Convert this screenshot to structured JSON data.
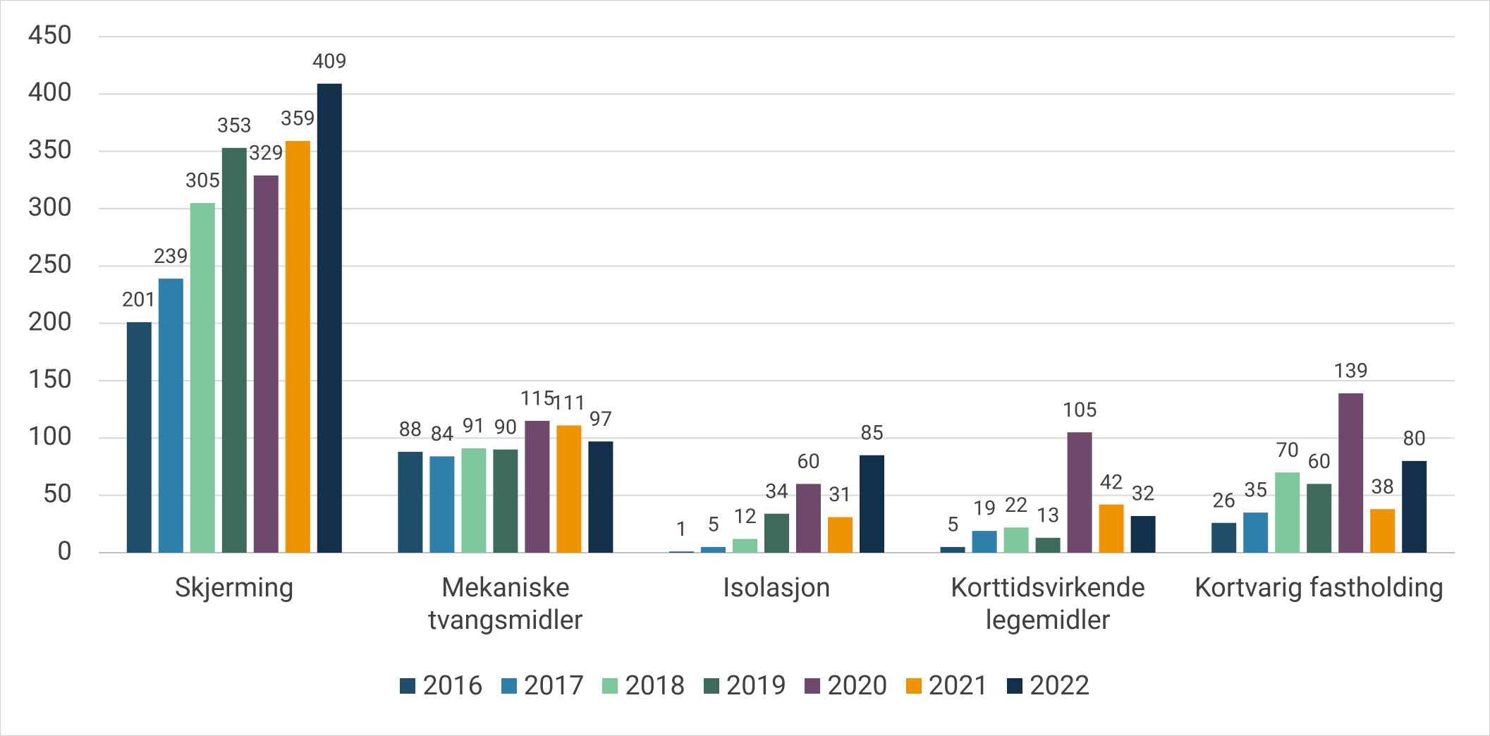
{
  "chart_data": {
    "type": "bar",
    "categories": [
      "Skjerming",
      "Mekaniske tvangsmidler",
      "Isolasjon",
      "Korttidsvirkende legemidler",
      "Kortvarig fastholding"
    ],
    "series": [
      {
        "name": "2016",
        "color": "#1f4e6b",
        "values": [
          201,
          88,
          1,
          5,
          26
        ]
      },
      {
        "name": "2017",
        "color": "#2e80aa",
        "values": [
          239,
          84,
          5,
          19,
          35
        ]
      },
      {
        "name": "2018",
        "color": "#7cc89b",
        "values": [
          305,
          91,
          12,
          22,
          70
        ]
      },
      {
        "name": "2019",
        "color": "#3d6a59",
        "values": [
          353,
          90,
          34,
          13,
          60
        ]
      },
      {
        "name": "2020",
        "color": "#6e496c",
        "values": [
          329,
          115,
          60,
          105,
          139
        ]
      },
      {
        "name": "2021",
        "color": "#f09300",
        "values": [
          359,
          111,
          31,
          42,
          38
        ]
      },
      {
        "name": "2022",
        "color": "#12304a",
        "values": [
          409,
          97,
          85,
          32,
          80
        ]
      }
    ],
    "ylim": [
      0,
      450
    ],
    "yticks": [
      0,
      50,
      100,
      150,
      200,
      250,
      300,
      350,
      400,
      450
    ],
    "grid": true,
    "legend": "bottom"
  }
}
